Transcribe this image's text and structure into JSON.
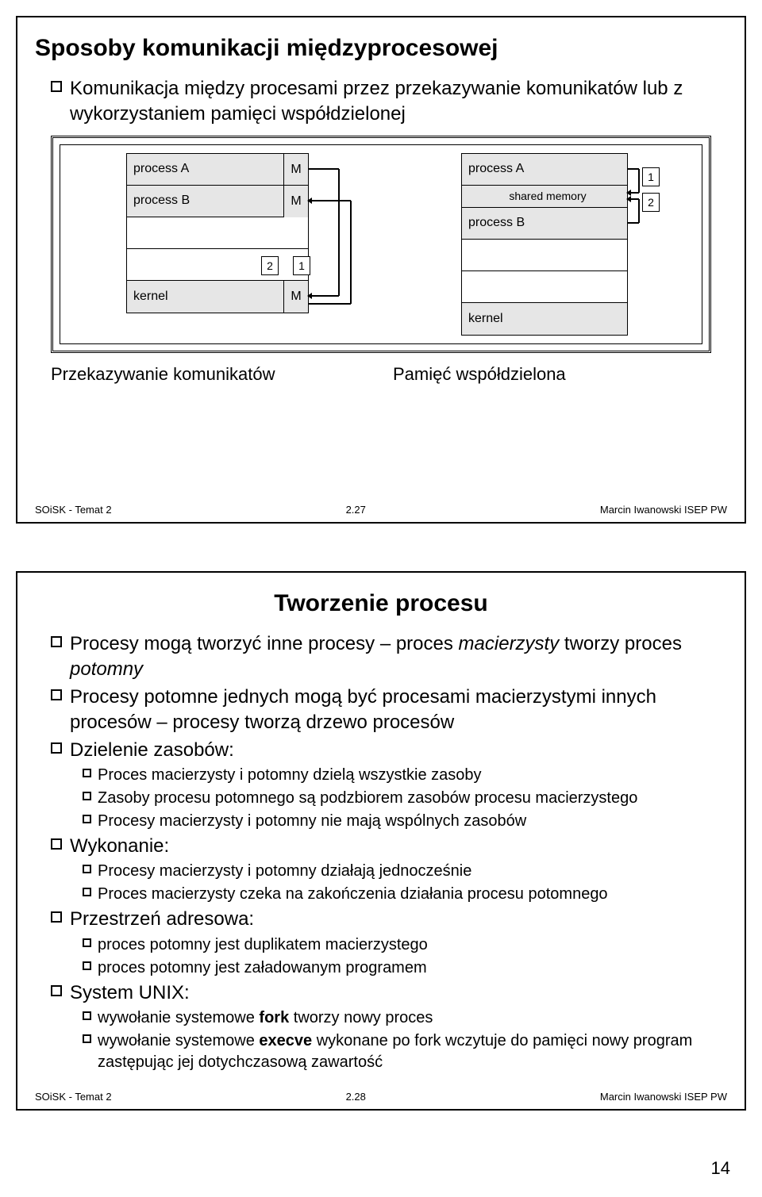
{
  "page_number": "14",
  "slide1": {
    "title": "Sposoby komunikacji międzyprocesowej",
    "bullets": [
      "Komunikacja między procesami przez przekazywanie komunikatów lub z wykorzystaniem pamięci współdzielonej"
    ],
    "diagram": {
      "left": {
        "cells": [
          "process A",
          "process B",
          "",
          "",
          "kernel"
        ],
        "m_labels": [
          "M",
          "M",
          "M"
        ],
        "num_labels": [
          "2",
          "1"
        ]
      },
      "right": {
        "cells": [
          "process A",
          "shared memory",
          "process B",
          "",
          "",
          "kernel"
        ],
        "num_labels": [
          "1",
          "2"
        ]
      }
    },
    "captions": [
      "Przekazywanie komunikatów",
      "Pamięć współdzielona"
    ],
    "footer_left": "SOiSK - Temat 2",
    "footer_mid": "2.27",
    "footer_right": "Marcin Iwanowski ISEP PW"
  },
  "slide2": {
    "title": "Tworzenie procesu",
    "items": [
      {
        "level": 1,
        "html": "Procesy mogą tworzyć inne procesy – proces <i>macierzysty</i> tworzy proces <i>potomny</i>"
      },
      {
        "level": 1,
        "html": "Procesy potomne jednych mogą być procesami macierzystymi innych procesów – procesy tworzą drzewo procesów"
      },
      {
        "level": 1,
        "html": "Dzielenie zasobów:"
      },
      {
        "level": 2,
        "html": "Proces macierzysty i potomny dzielą wszystkie zasoby"
      },
      {
        "level": 2,
        "html": "Zasoby procesu potomnego są podzbiorem zasobów procesu macierzystego"
      },
      {
        "level": 2,
        "html": "Procesy macierzysty i potomny nie mają wspólnych zasobów"
      },
      {
        "level": 1,
        "html": "Wykonanie:"
      },
      {
        "level": 2,
        "html": "Procesy macierzysty i potomny działają jednocześnie"
      },
      {
        "level": 2,
        "html": "Proces macierzysty czeka na zakończenia działania procesu potomnego"
      },
      {
        "level": 1,
        "html": "Przestrzeń adresowa:"
      },
      {
        "level": 2,
        "html": "proces potomny jest duplikatem macierzystego"
      },
      {
        "level": 2,
        "html": "proces potomny jest załadowanym programem"
      },
      {
        "level": 1,
        "html": "System UNIX:"
      },
      {
        "level": 2,
        "html": "wywołanie systemowe <b>fork</b> tworzy nowy proces"
      },
      {
        "level": 2,
        "html": "wywołanie systemowe <b>execve</b> wykonane po fork wczytuje do pamięci nowy program zastępując jej dotychczasową zawartość"
      }
    ],
    "footer_left": "SOiSK - Temat 2",
    "footer_mid": "2.28",
    "footer_right": "Marcin Iwanowski ISEP PW"
  }
}
